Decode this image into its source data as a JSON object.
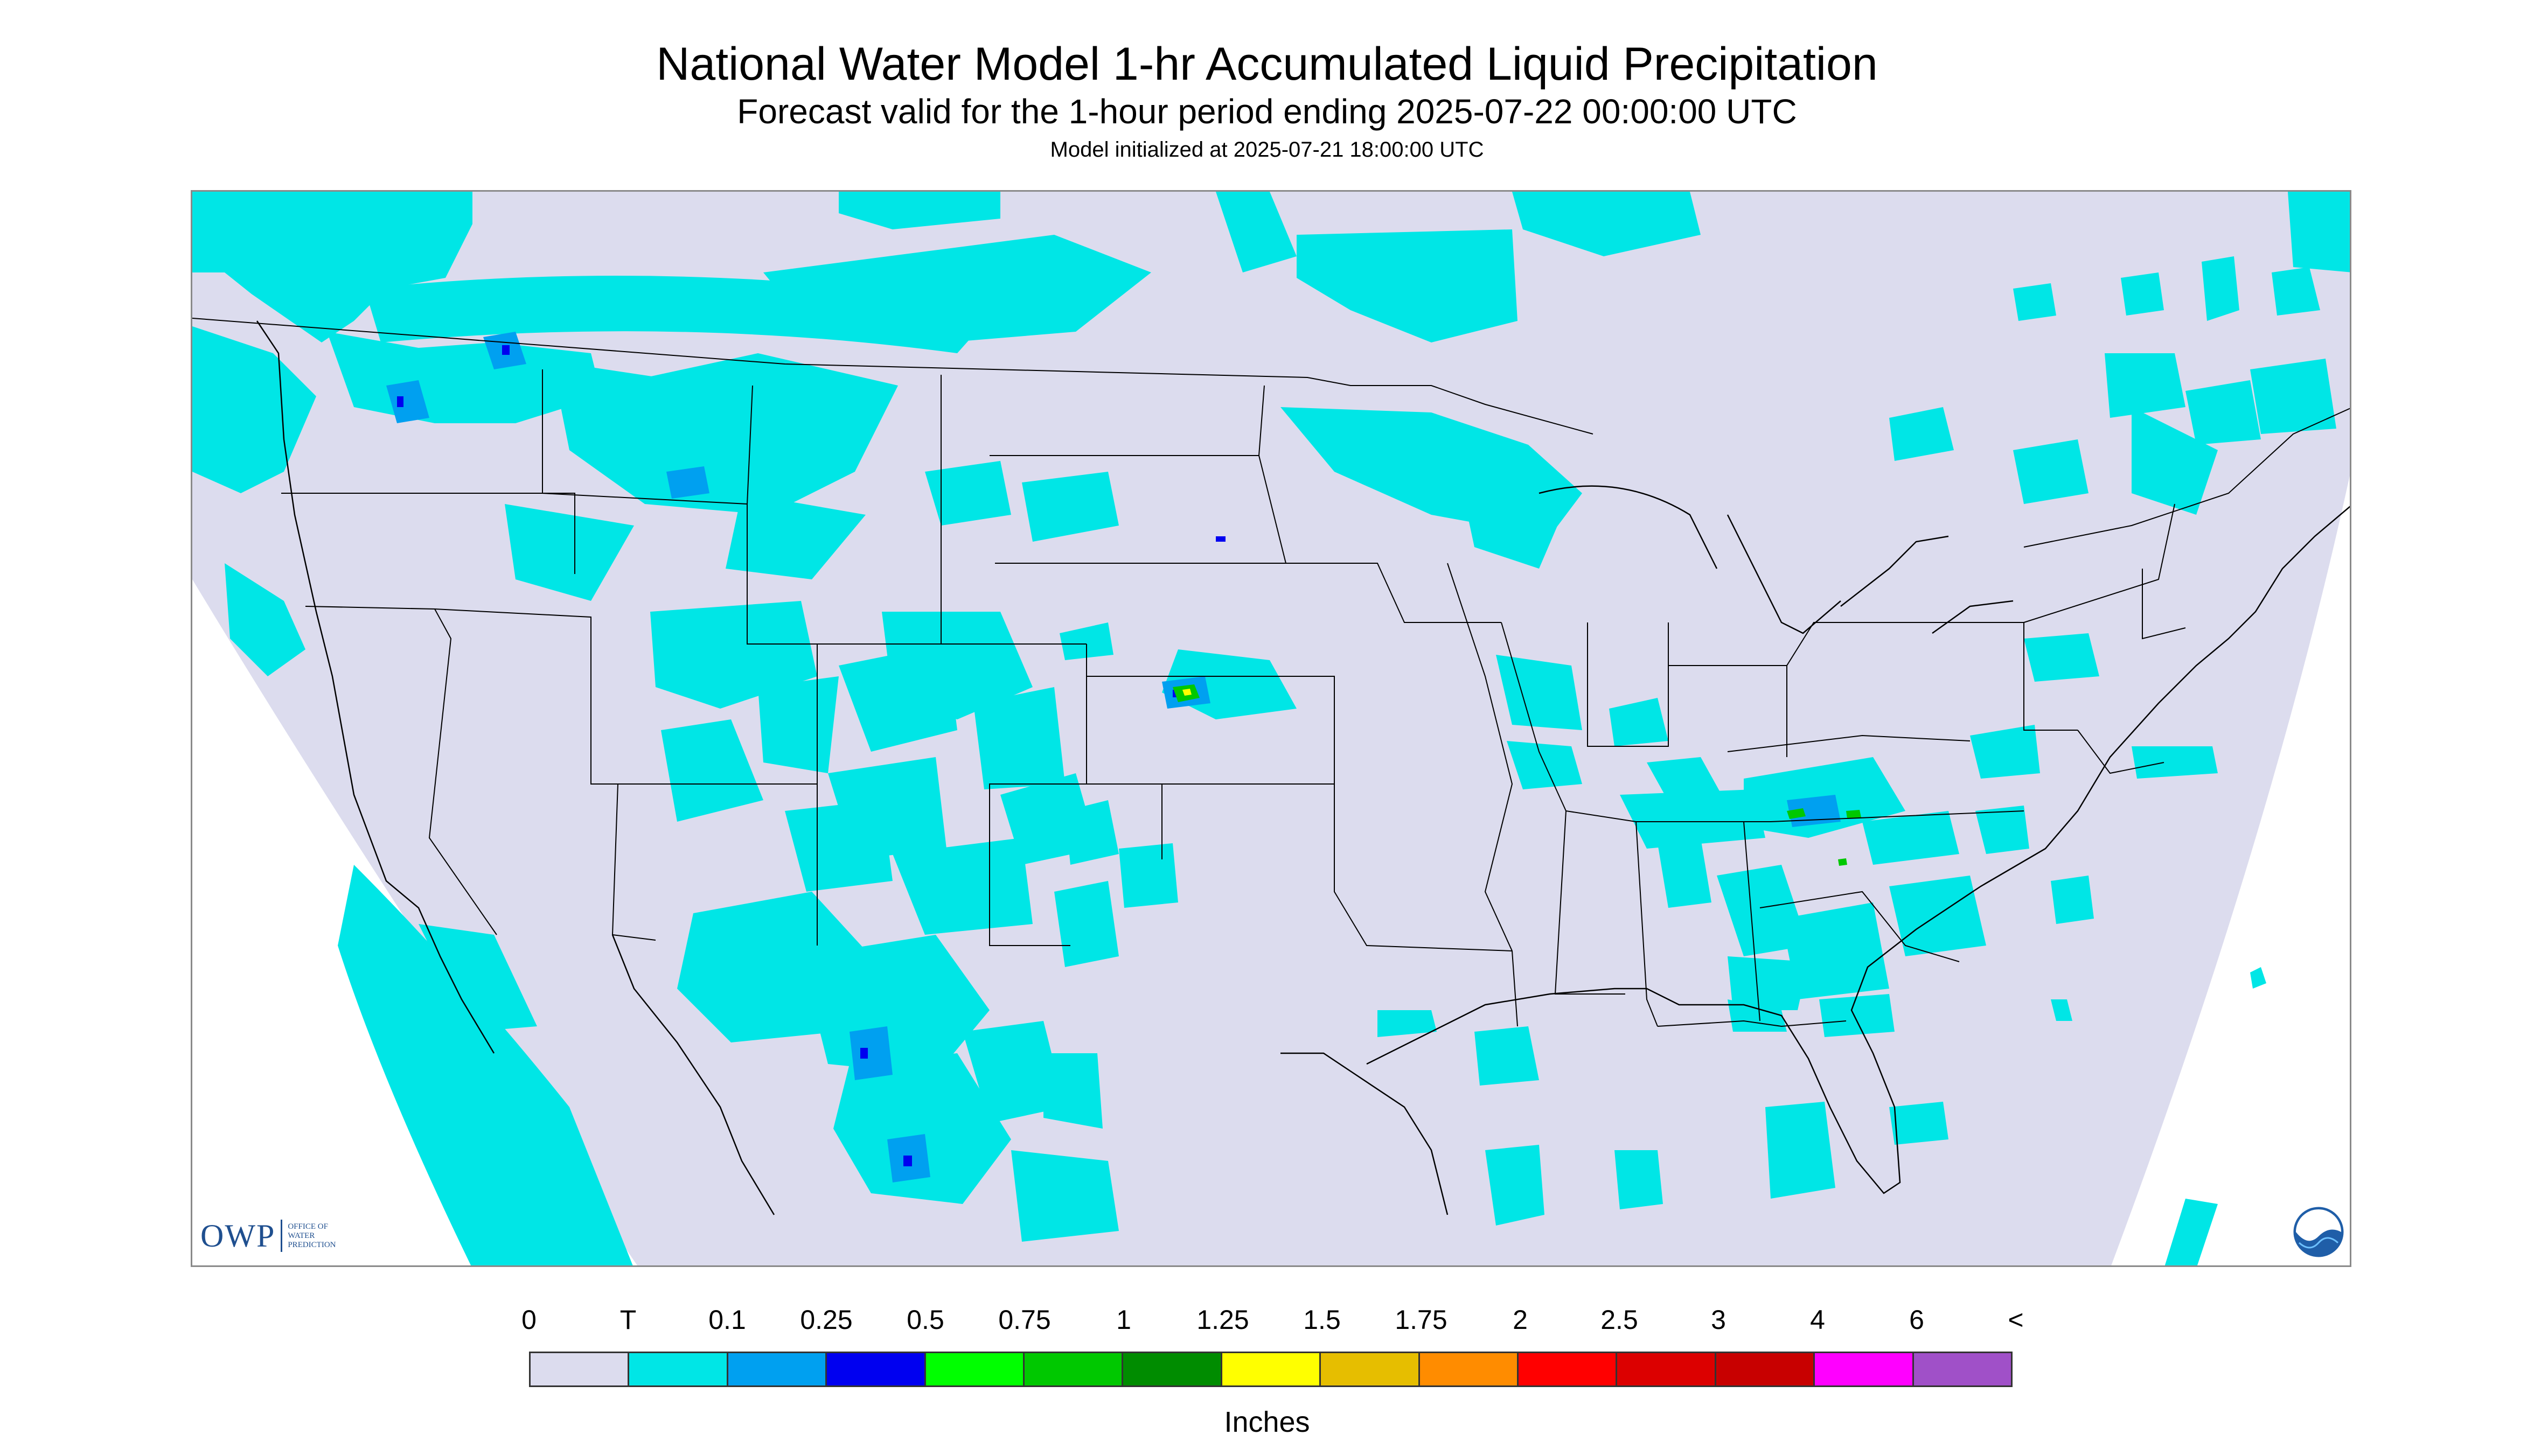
{
  "header": {
    "title": "National Water Model 1-hr Accumulated Liquid Precipitation",
    "subtitle": "Forecast valid for the 1-hour period ending 2025-07-22 00:00:00 UTC",
    "init_line": "Model initialized at 2025-07-21 18:00:00 UTC"
  },
  "map": {
    "projection": "Lambert Conformal Conic",
    "domain_fill": "#dcdcee",
    "outside_fill": "#ffffff",
    "boundary_color": "#000000",
    "colors": {
      "trace": "#00e6e6",
      "light": "#00a0f0",
      "moderate": "#0000f0",
      "heavy_green": "#00c800",
      "yellow": "#ffff00"
    }
  },
  "legend": {
    "labels": [
      "0",
      "T",
      "0.1",
      "0.25",
      "0.5",
      "0.75",
      "1",
      "1.25",
      "1.5",
      "1.75",
      "2",
      "2.5",
      "3",
      "4",
      "6",
      "<"
    ],
    "colors": [
      "#dcdcee",
      "#00e6e6",
      "#00a0f0",
      "#0000f0",
      "#00ff00",
      "#00c800",
      "#008c00",
      "#ffff00",
      "#e6be00",
      "#ff8c00",
      "#ff0000",
      "#dc0000",
      "#c80000",
      "#ff00ff",
      "#a050c8"
    ],
    "units": "Inches"
  },
  "logos": {
    "owp_mark": "OWP",
    "owp_name": "OFFICE OF WATER PREDICTION",
    "noaa_icon": "noaa-logo-icon"
  }
}
